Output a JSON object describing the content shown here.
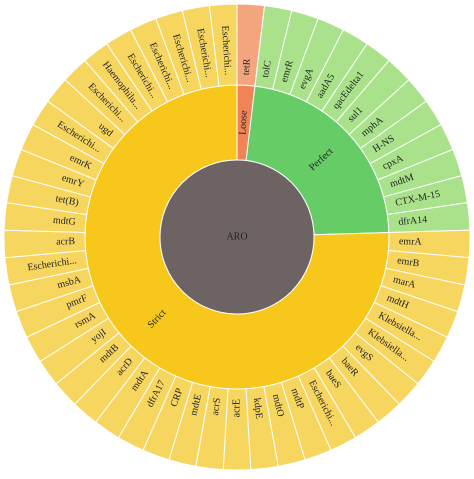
{
  "chart_data": {
    "type": "sunburst",
    "center": "ARO",
    "center_color": "#6e6363",
    "groups": [
      {
        "name": "Loose",
        "color": "#ef8557",
        "leaf_color": "#f4a57e",
        "leaves": [
          "tetR"
        ]
      },
      {
        "name": "Perfect",
        "color": "#66cc66",
        "leaf_color": "#a9e28a",
        "leaves": [
          "tolC",
          "emrR",
          "evgA",
          "aadA5",
          "qacEdelta1",
          "sul1",
          "mphA",
          "H-NS",
          "cpxA",
          "mdtM",
          "CTX-M-15",
          "dfrA14"
        ]
      },
      {
        "name": "Strict",
        "color": "#f7c81b",
        "leaf_color": "#f7d660",
        "leaves": [
          "emrA",
          "emrB",
          "marA",
          "mdtH",
          "Klebsiella...",
          "Klebsiella...",
          "evgS",
          "baeR",
          "baeS",
          "Escherichi...",
          "mdtP",
          "mdtO",
          "kdpE",
          "acrE",
          "acrS",
          "mdtE",
          "CRP",
          "dfrA17",
          "mdtA",
          "acrD",
          "mdtB",
          "yojI",
          "rsmA",
          "pmrF",
          "msbA",
          "Escherichi...",
          "acrB",
          "mdtG",
          "tet(B)",
          "emrY",
          "emrK",
          "Escherichi...",
          "ugd",
          "Escherichi...",
          "Haemophilu...",
          "Escherichi...",
          "Escherichi...",
          "Escherichi...",
          "Escherichi...",
          "Escherichi..."
        ]
      }
    ]
  }
}
